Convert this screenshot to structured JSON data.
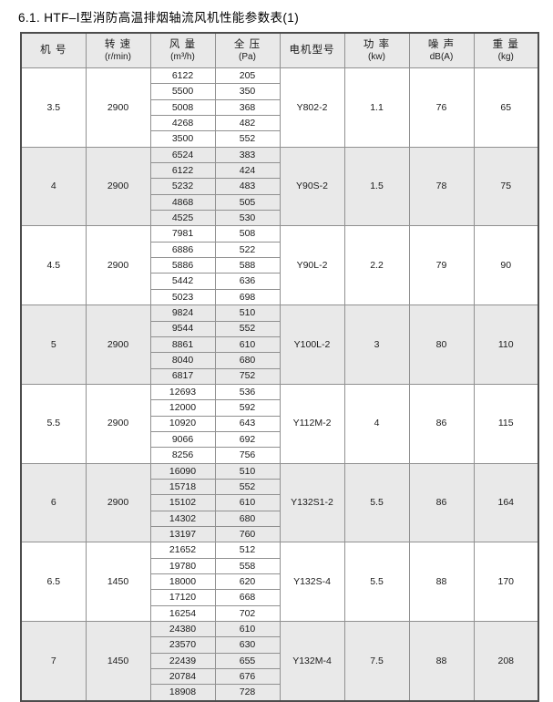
{
  "title": "6.1. HTF–Ⅰ型消防高温排烟轴流风机性能参数表(1)",
  "colors": {
    "page_bg": "#ffffff",
    "header_bg": "#e9e9e9",
    "shaded_block_bg": "#e9e9e9",
    "outer_border": "#4d4d4d",
    "inner_border": "#909090",
    "text": "#1a1a1a"
  },
  "table": {
    "headers": [
      {
        "key": "machine-no",
        "line1": "机 号",
        "line2": ""
      },
      {
        "key": "speed",
        "line1": "转 速",
        "line2": "(r/min)"
      },
      {
        "key": "airflow",
        "line1": "风 量",
        "line2": "(m³/h)"
      },
      {
        "key": "pressure",
        "line1": "全 压",
        "line2": "(Pa)"
      },
      {
        "key": "motor-model",
        "line1": "电机型号",
        "line2": ""
      },
      {
        "key": "power",
        "line1": "功 率",
        "line2": "(kw)"
      },
      {
        "key": "noise",
        "line1": "噪 声",
        "line2": "dB(A)"
      },
      {
        "key": "weight",
        "line1": "重 量",
        "line2": "(kg)"
      }
    ],
    "blocks": [
      {
        "model": "3.5",
        "speed": "2900",
        "motor": "Y802-2",
        "power": "1.1",
        "noise": "76",
        "weight": "65",
        "shaded": false,
        "rows": [
          [
            "6122",
            "205"
          ],
          [
            "5500",
            "350"
          ],
          [
            "5008",
            "368"
          ],
          [
            "4268",
            "482"
          ],
          [
            "3500",
            "552"
          ]
        ]
      },
      {
        "model": "4",
        "speed": "2900",
        "motor": "Y90S-2",
        "power": "1.5",
        "noise": "78",
        "weight": "75",
        "shaded": true,
        "rows": [
          [
            "6524",
            "383"
          ],
          [
            "6122",
            "424"
          ],
          [
            "5232",
            "483"
          ],
          [
            "4868",
            "505"
          ],
          [
            "4525",
            "530"
          ]
        ]
      },
      {
        "model": "4.5",
        "speed": "2900",
        "motor": "Y90L-2",
        "power": "2.2",
        "noise": "79",
        "weight": "90",
        "shaded": false,
        "rows": [
          [
            "7981",
            "508"
          ],
          [
            "6886",
            "522"
          ],
          [
            "5886",
            "588"
          ],
          [
            "5442",
            "636"
          ],
          [
            "5023",
            "698"
          ]
        ]
      },
      {
        "model": "5",
        "speed": "2900",
        "motor": "Y100L-2",
        "power": "3",
        "noise": "80",
        "weight": "110",
        "shaded": true,
        "rows": [
          [
            "9824",
            "510"
          ],
          [
            "9544",
            "552"
          ],
          [
            "8861",
            "610"
          ],
          [
            "8040",
            "680"
          ],
          [
            "6817",
            "752"
          ]
        ]
      },
      {
        "model": "5.5",
        "speed": "2900",
        "motor": "Y112M-2",
        "power": "4",
        "noise": "86",
        "weight": "115",
        "shaded": false,
        "rows": [
          [
            "12693",
            "536"
          ],
          [
            "12000",
            "592"
          ],
          [
            "10920",
            "643"
          ],
          [
            "9066",
            "692"
          ],
          [
            "8256",
            "756"
          ]
        ]
      },
      {
        "model": "6",
        "speed": "2900",
        "motor": "Y132S1-2",
        "power": "5.5",
        "noise": "86",
        "weight": "164",
        "shaded": true,
        "rows": [
          [
            "16090",
            "510"
          ],
          [
            "15718",
            "552"
          ],
          [
            "15102",
            "610"
          ],
          [
            "14302",
            "680"
          ],
          [
            "13197",
            "760"
          ]
        ]
      },
      {
        "model": "6.5",
        "speed": "1450",
        "motor": "Y132S-4",
        "power": "5.5",
        "noise": "88",
        "weight": "170",
        "shaded": false,
        "rows": [
          [
            "21652",
            "512"
          ],
          [
            "19780",
            "558"
          ],
          [
            "18000",
            "620"
          ],
          [
            "17120",
            "668"
          ],
          [
            "16254",
            "702"
          ]
        ]
      },
      {
        "model": "7",
        "speed": "1450",
        "motor": "Y132M-4",
        "power": "7.5",
        "noise": "88",
        "weight": "208",
        "shaded": true,
        "rows": [
          [
            "24380",
            "610"
          ],
          [
            "23570",
            "630"
          ],
          [
            "22439",
            "655"
          ],
          [
            "20784",
            "676"
          ],
          [
            "18908",
            "728"
          ]
        ]
      }
    ]
  }
}
